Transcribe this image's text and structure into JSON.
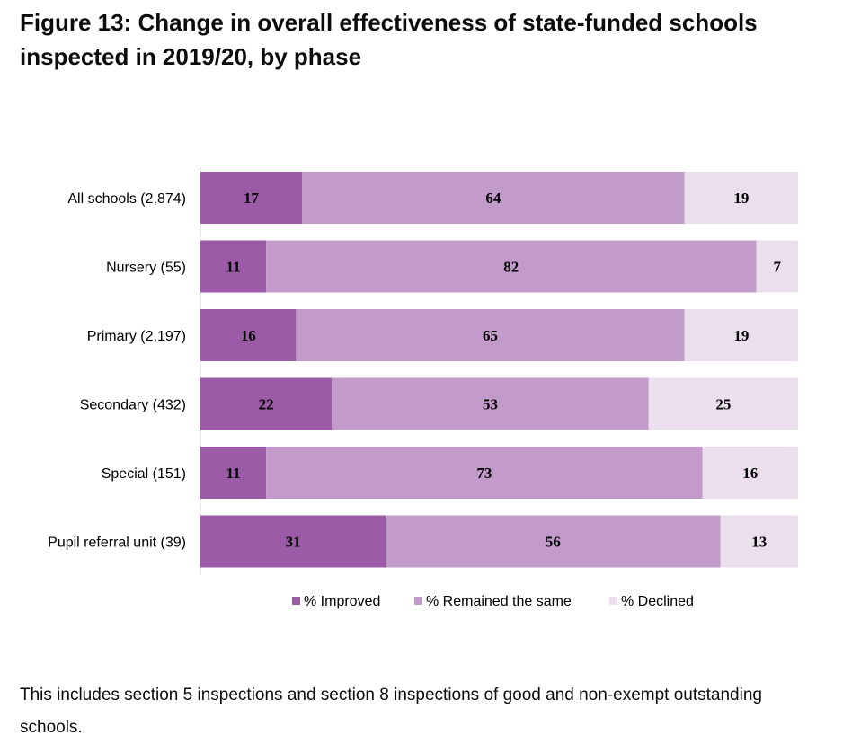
{
  "title": "Figure 13: Change in overall effectiveness of state-funded schools inspected in 2019/20, by phase",
  "note": "This includes section 5 inspections and section 8 inspections of good and non-exempt outstanding schools.",
  "colors": {
    "improved": "#9b5ba6",
    "same": "#c39bcb",
    "declined": "#ebdfee"
  },
  "chart_data": {
    "type": "bar",
    "orientation": "horizontal",
    "stacked": true,
    "categories": [
      "All schools (2,874)",
      "Nursery (55)",
      "Primary (2,197)",
      "Secondary (432)",
      "Special (151)",
      "Pupil referral unit (39)"
    ],
    "series": [
      {
        "name": "% Improved",
        "values": [
          17,
          11,
          16,
          22,
          11,
          31
        ]
      },
      {
        "name": "% Remained the same",
        "values": [
          64,
          82,
          65,
          53,
          73,
          56
        ]
      },
      {
        "name": "% Declined",
        "values": [
          19,
          7,
          19,
          25,
          16,
          13
        ]
      }
    ],
    "xlim": [
      0,
      100
    ],
    "grid": false,
    "legend_position": "bottom"
  }
}
